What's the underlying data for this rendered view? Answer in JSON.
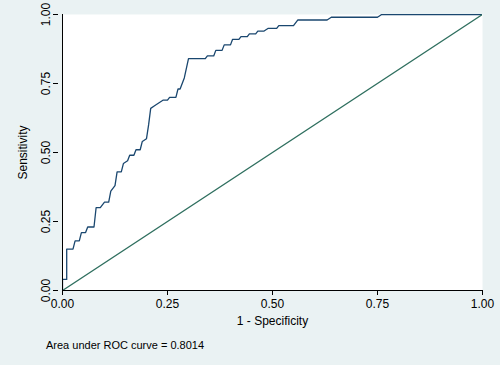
{
  "chart_data": {
    "type": "line",
    "x_label": "1 - Specificity",
    "y_label": "Sensitivity",
    "annotations": [
      "Area under ROC curve = 0.8014"
    ],
    "xlim": [
      0,
      1
    ],
    "ylim": [
      0,
      1
    ],
    "xticks": [
      {
        "value": 0,
        "label": "0.00"
      },
      {
        "value": 0.25,
        "label": "0.25"
      },
      {
        "value": 0.5,
        "label": "0.50"
      },
      {
        "value": 0.75,
        "label": "0.75"
      },
      {
        "value": 1,
        "label": "1.00"
      }
    ],
    "yticks": [
      {
        "value": 0,
        "label": "0.00"
      },
      {
        "value": 0.25,
        "label": "0.25"
      },
      {
        "value": 0.5,
        "label": "0.50"
      },
      {
        "value": 0.75,
        "label": "0.75"
      },
      {
        "value": 1,
        "label": "1.00"
      }
    ],
    "grid": false,
    "series": [
      {
        "color": "#1a476f",
        "line_style": "solid",
        "x": [
          0,
          0,
          0.01,
          0.01,
          0.025,
          0.03,
          0.04,
          0.045,
          0.055,
          0.06,
          0.075,
          0.08,
          0.09,
          0.1,
          0.11,
          0.115,
          0.125,
          0.13,
          0.14,
          0.145,
          0.155,
          0.16,
          0.17,
          0.175,
          0.185,
          0.19,
          0.2,
          0.205,
          0.21,
          0.22,
          0.23,
          0.24,
          0.25,
          0.255,
          0.27,
          0.275,
          0.28,
          0.29,
          0.3,
          0.34,
          0.345,
          0.36,
          0.365,
          0.38,
          0.385,
          0.4,
          0.405,
          0.42,
          0.425,
          0.44,
          0.445,
          0.46,
          0.465,
          0.48,
          0.49,
          0.51,
          0.515,
          0.55,
          0.56,
          0.63,
          0.64,
          0.75,
          0.76,
          0.92,
          1
        ],
        "values": [
          0,
          0.04,
          0.04,
          0.15,
          0.15,
          0.18,
          0.18,
          0.21,
          0.21,
          0.23,
          0.23,
          0.3,
          0.3,
          0.32,
          0.32,
          0.36,
          0.38,
          0.43,
          0.43,
          0.46,
          0.47,
          0.49,
          0.49,
          0.51,
          0.51,
          0.54,
          0.55,
          0.6,
          0.66,
          0.67,
          0.68,
          0.69,
          0.69,
          0.7,
          0.7,
          0.73,
          0.73,
          0.77,
          0.84,
          0.84,
          0.85,
          0.85,
          0.87,
          0.87,
          0.89,
          0.89,
          0.91,
          0.91,
          0.92,
          0.92,
          0.93,
          0.93,
          0.94,
          0.94,
          0.95,
          0.95,
          0.96,
          0.96,
          0.98,
          0.98,
          0.99,
          0.99,
          1,
          1,
          1
        ]
      },
      {
        "color": "#2f6f5f",
        "line_style": "solid",
        "x": [
          0,
          1
        ],
        "values": [
          0,
          1
        ]
      }
    ]
  }
}
